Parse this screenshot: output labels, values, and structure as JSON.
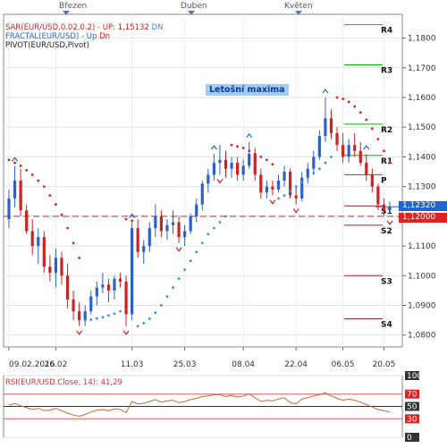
{
  "months": [
    {
      "label": "Březen",
      "x": 74
    },
    {
      "label": "Duben",
      "x": 214
    },
    {
      "label": "Květen",
      "x": 334
    }
  ],
  "indicators": {
    "sar": {
      "name": "SAR(EUR/USD,0.02,0.2)",
      "sep": " - ",
      "up": "UP: 1,15132",
      "dn": "DN"
    },
    "fractal": {
      "name": "FRACTAL(EUR/USD)",
      "sep": " - ",
      "up": "Up",
      "dn": "Dn"
    },
    "pivot": {
      "name": "PIVOT(EUR/USD,Pivot)"
    },
    "rsi": {
      "name": "RSI(EUR/USD.Close, 14): 41,29"
    }
  },
  "annotation": "Letošní maxima",
  "pivot_levels": [
    {
      "label": "R4",
      "value": 1.1845,
      "color": "#00bb00"
    },
    {
      "label": "R3",
      "value": 1.171,
      "color": "#00bb00"
    },
    {
      "label": "R2",
      "value": 1.151,
      "color": "#00bb00"
    },
    {
      "label": "R1",
      "value": 1.1405,
      "color": "#00bb00"
    },
    {
      "label": "P",
      "value": 1.134,
      "color": "#555555"
    },
    {
      "label": "S1",
      "value": 1.1235,
      "color": "#aa2222"
    },
    {
      "label": "S2",
      "value": 1.117,
      "color": "#aa2222"
    },
    {
      "label": "S3",
      "value": 1.1,
      "color": "#aa2222"
    },
    {
      "label": "S4",
      "value": 1.0855,
      "color": "#aa2222"
    }
  ],
  "price_axis": [
    "1,1800",
    "1,1700",
    "1,1600",
    "1,1500",
    "1,1400",
    "1,1300",
    "1,1200",
    "1,1100",
    "1,1000",
    "1,0900",
    "1,0800"
  ],
  "current_price": {
    "label": "1,12320",
    "value": 1.1232,
    "color": "#2266cc"
  },
  "ref_price": {
    "label": "1,12000",
    "value": 1.12,
    "color": "#dd2222"
  },
  "date_axis": [
    "09.02.2016",
    "26.02",
    "11.03",
    "25.03",
    "08.04",
    "22.04",
    "06.05",
    "20.05"
  ],
  "rsi_axis": [
    "100",
    "70",
    "50",
    "30",
    "0"
  ],
  "colors": {
    "bull": "#2a62c9",
    "bear": "#cc2222",
    "sar_up": "#3a8ee6",
    "sar_dn": "#e02020",
    "rsi": "#cc6633",
    "bg": "#ffffff",
    "grid": "#e2e2e2"
  },
  "chart_data": {
    "type": "candlestick",
    "ylim": [
      1.076,
      1.188
    ],
    "candles": [
      [
        1.119,
        1.129,
        1.116,
        1.126
      ],
      [
        1.126,
        1.137,
        1.123,
        1.132
      ],
      [
        1.132,
        1.136,
        1.12,
        1.122
      ],
      [
        1.122,
        1.124,
        1.114,
        1.115
      ],
      [
        1.115,
        1.119,
        1.107,
        1.11
      ],
      [
        1.11,
        1.116,
        1.104,
        1.113
      ],
      [
        1.113,
        1.115,
        1.101,
        1.103
      ],
      [
        1.103,
        1.107,
        1.098,
        1.101
      ],
      [
        1.101,
        1.109,
        1.096,
        1.106
      ],
      [
        1.106,
        1.108,
        1.097,
        1.1
      ],
      [
        1.1,
        1.104,
        1.089,
        1.092
      ],
      [
        1.092,
        1.095,
        1.085,
        1.088
      ],
      [
        1.088,
        1.091,
        1.083,
        1.085
      ],
      [
        1.085,
        1.09,
        1.083,
        1.088
      ],
      [
        1.088,
        1.095,
        1.087,
        1.093
      ],
      [
        1.093,
        1.098,
        1.09,
        1.096
      ],
      [
        1.096,
        1.101,
        1.094,
        1.097
      ],
      [
        1.097,
        1.099,
        1.091,
        1.095
      ],
      [
        1.095,
        1.1,
        1.092,
        1.099
      ],
      [
        1.099,
        1.101,
        1.096,
        1.098
      ],
      [
        1.098,
        1.1,
        1.083,
        1.087
      ],
      [
        1.087,
        1.118,
        1.085,
        1.116
      ],
      [
        1.116,
        1.119,
        1.106,
        1.108
      ],
      [
        1.108,
        1.112,
        1.104,
        1.11
      ],
      [
        1.11,
        1.118,
        1.108,
        1.116
      ],
      [
        1.116,
        1.124,
        1.113,
        1.12
      ],
      [
        1.12,
        1.122,
        1.113,
        1.115
      ],
      [
        1.115,
        1.119,
        1.112,
        1.117
      ],
      [
        1.117,
        1.122,
        1.114,
        1.118
      ],
      [
        1.118,
        1.12,
        1.111,
        1.113
      ],
      [
        1.113,
        1.117,
        1.11,
        1.115
      ],
      [
        1.115,
        1.121,
        1.114,
        1.12
      ],
      [
        1.12,
        1.126,
        1.118,
        1.124
      ],
      [
        1.124,
        1.132,
        1.122,
        1.131
      ],
      [
        1.131,
        1.136,
        1.128,
        1.134
      ],
      [
        1.134,
        1.141,
        1.132,
        1.138
      ],
      [
        1.138,
        1.144,
        1.134,
        1.139
      ],
      [
        1.139,
        1.142,
        1.133,
        1.136
      ],
      [
        1.136,
        1.14,
        1.133,
        1.138
      ],
      [
        1.138,
        1.14,
        1.132,
        1.134
      ],
      [
        1.134,
        1.139,
        1.132,
        1.137
      ],
      [
        1.137,
        1.145,
        1.136,
        1.141
      ],
      [
        1.141,
        1.143,
        1.132,
        1.134
      ],
      [
        1.134,
        1.136,
        1.126,
        1.128
      ],
      [
        1.128,
        1.132,
        1.126,
        1.13
      ],
      [
        1.13,
        1.132,
        1.127,
        1.129
      ],
      [
        1.129,
        1.134,
        1.128,
        1.132
      ],
      [
        1.132,
        1.137,
        1.13,
        1.135
      ],
      [
        1.135,
        1.136,
        1.126,
        1.127
      ],
      [
        1.127,
        1.13,
        1.124,
        1.126
      ],
      [
        1.126,
        1.135,
        1.125,
        1.133
      ],
      [
        1.133,
        1.138,
        1.131,
        1.136
      ],
      [
        1.136,
        1.142,
        1.134,
        1.14
      ],
      [
        1.14,
        1.149,
        1.139,
        1.147
      ],
      [
        1.147,
        1.16,
        1.145,
        1.153
      ],
      [
        1.153,
        1.156,
        1.146,
        1.148
      ],
      [
        1.148,
        1.15,
        1.142,
        1.144
      ],
      [
        1.144,
        1.148,
        1.138,
        1.14
      ],
      [
        1.14,
        1.146,
        1.138,
        1.144
      ],
      [
        1.144,
        1.148,
        1.14,
        1.142
      ],
      [
        1.142,
        1.145,
        1.137,
        1.138
      ],
      [
        1.138,
        1.141,
        1.132,
        1.134
      ],
      [
        1.134,
        1.136,
        1.128,
        1.13
      ],
      [
        1.13,
        1.131,
        1.122,
        1.124
      ],
      [
        1.124,
        1.126,
        1.12,
        1.122
      ],
      [
        1.122,
        1.125,
        1.121,
        1.1232
      ]
    ],
    "sar": [
      [
        1.139,
        "dn"
      ],
      [
        1.138,
        "dn"
      ],
      [
        1.137,
        "dn"
      ],
      [
        1.1355,
        "dn"
      ],
      [
        1.134,
        "dn"
      ],
      [
        1.132,
        "dn"
      ],
      [
        1.13,
        "dn"
      ],
      [
        1.127,
        "dn"
      ],
      [
        1.124,
        "dn"
      ],
      [
        1.1205,
        "dn"
      ],
      [
        1.116,
        "dn"
      ],
      [
        1.111,
        "dn"
      ],
      [
        1.106,
        "dn"
      ],
      [
        1.085,
        "up"
      ],
      [
        1.0852,
        "up"
      ],
      [
        1.0856,
        "up"
      ],
      [
        1.086,
        "up"
      ],
      [
        1.0866,
        "up"
      ],
      [
        1.0872,
        "up"
      ],
      [
        1.088,
        "up"
      ],
      [
        1.119,
        "dn"
      ],
      [
        1.1185,
        "dn"
      ],
      [
        1.083,
        "up"
      ],
      [
        1.084,
        "up"
      ],
      [
        1.0855,
        "up"
      ],
      [
        1.0875,
        "up"
      ],
      [
        1.09,
        "up"
      ],
      [
        1.093,
        "up"
      ],
      [
        1.096,
        "up"
      ],
      [
        1.099,
        "up"
      ],
      [
        1.102,
        "up"
      ],
      [
        1.105,
        "up"
      ],
      [
        1.108,
        "up"
      ],
      [
        1.111,
        "up"
      ],
      [
        1.114,
        "up"
      ],
      [
        1.116,
        "up"
      ],
      [
        1.118,
        "up"
      ],
      [
        1.12,
        "up"
      ],
      [
        1.144,
        "dn"
      ],
      [
        1.1435,
        "dn"
      ],
      [
        1.143,
        "dn"
      ],
      [
        1.142,
        "dn"
      ],
      [
        1.141,
        "dn"
      ],
      [
        1.14,
        "dn"
      ],
      [
        1.139,
        "dn"
      ],
      [
        1.1375,
        "dn"
      ],
      [
        1.126,
        "up"
      ],
      [
        1.127,
        "up"
      ],
      [
        1.1285,
        "up"
      ],
      [
        1.13,
        "up"
      ],
      [
        1.1315,
        "up"
      ],
      [
        1.133,
        "up"
      ],
      [
        1.1345,
        "up"
      ],
      [
        1.136,
        "up"
      ],
      [
        1.138,
        "up"
      ],
      [
        1.14,
        "up"
      ],
      [
        1.16,
        "dn"
      ],
      [
        1.1595,
        "dn"
      ],
      [
        1.1585,
        "dn"
      ],
      [
        1.157,
        "dn"
      ],
      [
        1.155,
        "dn"
      ],
      [
        1.1525,
        "dn"
      ],
      [
        1.1495,
        "dn"
      ],
      [
        1.146,
        "dn"
      ],
      [
        1.142,
        "dn"
      ],
      [
        1.138,
        "dn"
      ]
    ],
    "fractals_up": [
      [
        1,
        1.137
      ],
      [
        21,
        1.118
      ],
      [
        35,
        1.141
      ],
      [
        41,
        1.145
      ],
      [
        54,
        1.16
      ],
      [
        61,
        1.141
      ]
    ],
    "fractals_dn": [
      [
        12,
        1.083
      ],
      [
        20,
        1.083
      ],
      [
        29,
        1.111
      ],
      [
        36,
        1.134
      ],
      [
        45,
        1.127
      ],
      [
        49,
        1.124
      ],
      [
        65,
        1.12
      ]
    ],
    "rsi_ylim": [
      0,
      100
    ],
    "rsi": [
      52,
      55,
      51,
      48,
      45,
      47,
      43,
      44,
      47,
      43,
      39,
      36,
      34,
      37,
      41,
      44,
      45,
      43,
      46,
      45,
      40,
      58,
      54,
      55,
      58,
      61,
      57,
      59,
      60,
      56,
      58,
      61,
      63,
      66,
      67,
      69,
      69,
      66,
      68,
      65,
      67,
      70,
      64,
      58,
      60,
      59,
      62,
      64,
      56,
      54,
      62,
      64,
      67,
      69,
      72,
      67,
      63,
      60,
      62,
      60,
      57,
      53,
      49,
      45,
      43,
      41
    ]
  }
}
